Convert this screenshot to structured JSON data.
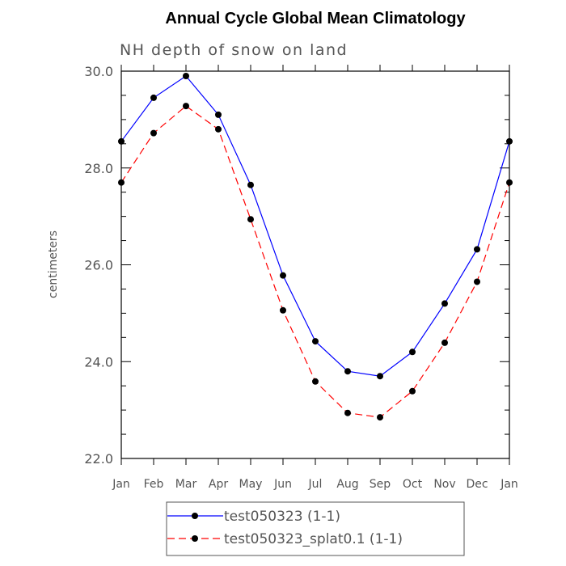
{
  "chart_data": {
    "type": "line",
    "title": "Annual Cycle Global Mean Climatology",
    "subtitle": "NH depth of snow on land",
    "ylabel": "centimeters",
    "xlabel": "",
    "categories": [
      "Jan",
      "Feb",
      "Mar",
      "Apr",
      "May",
      "Jun",
      "Jul",
      "Aug",
      "Sep",
      "Oct",
      "Nov",
      "Dec",
      "Jan"
    ],
    "ylim": [
      22.0,
      30.0
    ],
    "yticks": [
      "22.0",
      "24.0",
      "26.0",
      "28.0",
      "30.0"
    ],
    "grid": false,
    "legend_position": "bottom-center",
    "series": [
      {
        "name": "test050323 (1-1)",
        "color": "#0000ff",
        "dash": "solid",
        "marker": "filled-circle",
        "values": [
          28.55,
          29.45,
          29.9,
          29.1,
          27.65,
          25.78,
          24.42,
          23.8,
          23.7,
          24.2,
          25.2,
          26.32,
          28.55
        ]
      },
      {
        "name": "test050323_splat0.1 (1-1)",
        "color": "#ff0000",
        "dash": "dashed",
        "marker": "filled-circle",
        "values": [
          27.7,
          28.72,
          29.28,
          28.8,
          26.94,
          25.06,
          23.59,
          22.94,
          22.85,
          23.39,
          24.39,
          25.65,
          27.7
        ]
      }
    ]
  }
}
